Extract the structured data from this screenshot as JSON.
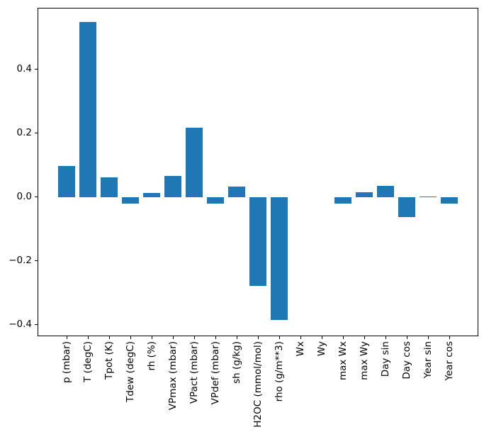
{
  "chart_data": {
    "type": "bar",
    "title": "",
    "xlabel": "",
    "ylabel": "",
    "legend": null,
    "grid": false,
    "bar_color": "#1f77b4",
    "axis_color": "#000000",
    "background_color": "#ffffff",
    "categories": [
      "p (mbar)",
      "T (degC)",
      "Tpot (K)",
      "Tdew (degC)",
      "rh (%)",
      "VPmax (mbar)",
      "VPact (mbar)",
      "VPdef (mbar)",
      "sh (g/kg)",
      "H2OC (mmol/mol)",
      "rho (g/m**3)",
      "Wx",
      "Wy",
      "max Wx",
      "max Wy",
      "Day sin",
      "Day cos",
      "Year sin",
      "Year cos"
    ],
    "values": [
      0.098,
      0.547,
      0.062,
      -0.021,
      0.013,
      0.066,
      0.218,
      -0.021,
      0.033,
      -0.277,
      -0.384,
      0.0,
      0.0,
      -0.021,
      0.016,
      0.035,
      -0.063,
      0.003,
      -0.02
    ],
    "yticks": [
      -0.4,
      -0.2,
      0.0,
      0.2,
      0.4
    ],
    "ytick_labels": [
      "−0.4",
      "−0.2",
      "0.0",
      "0.2",
      "0.4"
    ],
    "ylim": [
      -0.433,
      0.59
    ],
    "xlim": [
      -1.343,
      19.343
    ],
    "bar_width_units": 0.8,
    "x_tick_label_rotation_deg": 90
  }
}
